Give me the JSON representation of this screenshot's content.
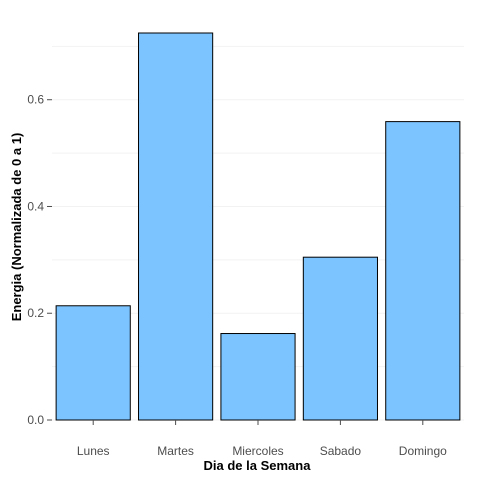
{
  "chart_data": {
    "type": "bar",
    "title": "",
    "xlabel": "Dia de la Semana",
    "ylabel": "Energia (Normalizada de 0 a 1)",
    "categories": [
      "Lunes",
      "Martes",
      "Miercoles",
      "Sabado",
      "Domingo"
    ],
    "values": [
      0.214,
      0.725,
      0.162,
      0.305,
      0.559
    ],
    "ylim": [
      0,
      0.725
    ],
    "yticks": [
      0.0,
      0.2,
      0.4,
      0.6
    ],
    "ytick_labels": [
      "0.0",
      "0.2",
      "0.4",
      "0.6"
    ],
    "grid": true,
    "legend": "none",
    "colors": {
      "bar_fill": "#7cc4ff",
      "bar_stroke": "#000000",
      "grid": "#f2f2f2",
      "background": "#ffffff"
    }
  }
}
